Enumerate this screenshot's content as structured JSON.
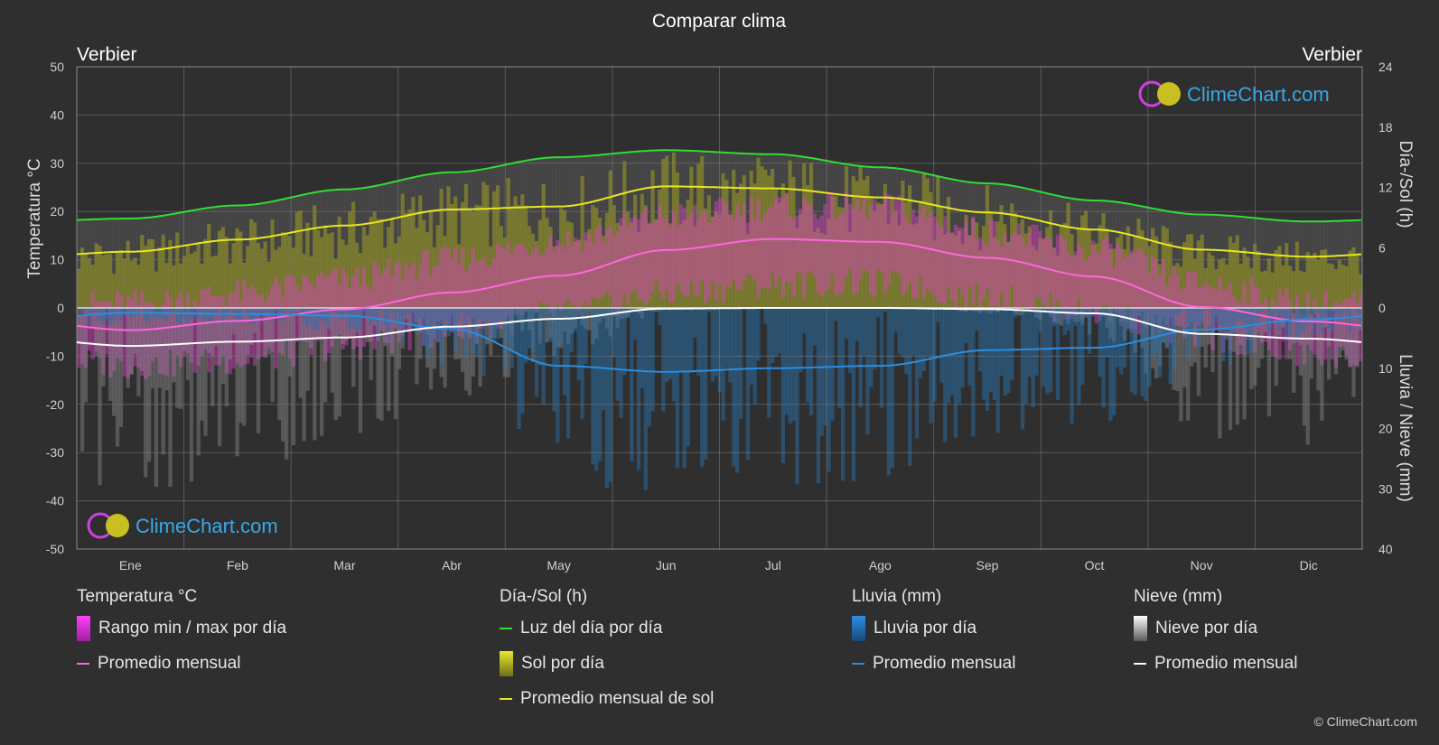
{
  "title": "Comparar clima",
  "location_left": "Verbier",
  "location_right": "Verbier",
  "logo_text": "ClimeChart.com",
  "copyright": "© ClimeChart.com",
  "colors": {
    "background": "#2f2f2f",
    "daylight": "#33dd33",
    "sun_avg": "#e8e822",
    "temp_avg": "#ff66dd",
    "rain_avg": "#2a8ee0",
    "snow_avg": "#ffffff",
    "temp_range": "#e040c8",
    "sun_bar": "#a0a020",
    "rain_bar": "#2a6fa8",
    "snow_bar": "#8a8a8a"
  },
  "legend": {
    "temperature": {
      "heading": "Temperatura °C",
      "range": "Rango min / max por día",
      "avg": "Promedio mensual"
    },
    "sun": {
      "heading": "Día-/Sol (h)",
      "daylight": "Luz del día por día",
      "sun": "Sol por día",
      "sun_avg": "Promedio mensual de sol"
    },
    "rain": {
      "heading": "Lluvia (mm)",
      "rain": "Lluvia por día",
      "avg": "Promedio mensual"
    },
    "snow": {
      "heading": "Nieve (mm)",
      "snow": "Nieve por día",
      "avg": "Promedio mensual"
    }
  },
  "chart_data": {
    "type": "line",
    "categories": [
      "Ene",
      "Feb",
      "Mar",
      "Abr",
      "May",
      "Jun",
      "Jul",
      "Ago",
      "Sep",
      "Oct",
      "Nov",
      "Dic"
    ],
    "y_left": {
      "label": "Temperatura °C",
      "range": [
        -50,
        50
      ],
      "ticks": [
        50,
        40,
        30,
        20,
        10,
        0,
        -10,
        -20,
        -30,
        -40,
        -50
      ]
    },
    "y_right_top": {
      "label": "Día-/Sol (h)",
      "range": [
        0,
        24
      ],
      "ticks": [
        24,
        18,
        12,
        6,
        0
      ]
    },
    "y_right_bottom": {
      "label": "Lluvia / Nieve (mm)",
      "range": [
        0,
        40
      ],
      "ticks": [
        10,
        20,
        30,
        40
      ]
    },
    "series": [
      {
        "name": "Luz del día por día",
        "axis": "sun_hours",
        "values": [
          8.9,
          10.2,
          11.8,
          13.5,
          15.0,
          15.7,
          15.3,
          14.0,
          12.4,
          10.7,
          9.3,
          8.6
        ]
      },
      {
        "name": "Promedio mensual de sol",
        "axis": "sun_hours",
        "values": [
          5.6,
          6.8,
          8.2,
          9.8,
          10.1,
          12.1,
          11.9,
          11.0,
          9.5,
          7.8,
          5.8,
          5.1
        ]
      },
      {
        "name": "Promedio mensual",
        "axis": "temperature",
        "values": [
          -4.6,
          -2.7,
          -0.3,
          3.2,
          6.7,
          12.0,
          14.3,
          13.7,
          10.4,
          6.5,
          0.2,
          -2.8
        ]
      },
      {
        "name": "Promedio mensual",
        "axis": "rain_mm",
        "values": [
          0.8,
          1.0,
          1.3,
          3.5,
          9.6,
          10.6,
          10.0,
          9.6,
          7.0,
          6.6,
          3.6,
          1.9
        ]
      },
      {
        "name": "Promedio mensual",
        "axis": "snow_mm",
        "values": [
          6.3,
          5.6,
          4.9,
          3.1,
          1.8,
          0.1,
          0.0,
          0.0,
          0.2,
          0.9,
          4.3,
          5.1
        ]
      }
    ],
    "temp_range_approx": {
      "max": [
        1,
        3,
        6,
        10,
        14,
        19,
        21,
        21,
        16,
        12,
        5,
        1
      ],
      "min": [
        -12,
        -11,
        -8,
        -5,
        -1,
        3,
        5,
        5,
        2,
        -1,
        -6,
        -10
      ]
    },
    "grid": true
  }
}
